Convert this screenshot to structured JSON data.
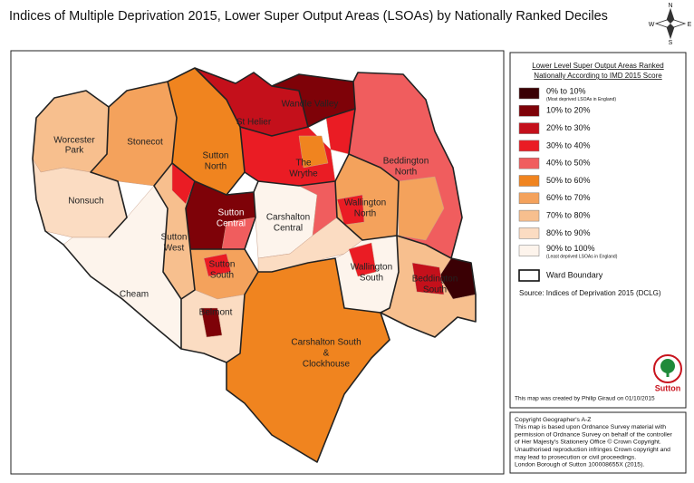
{
  "title": "Indices of Multiple Deprivation 2015, Lower Super Output Areas (LSOAs) by Nationally Ranked Deciles",
  "compass": {
    "n": "N",
    "e": "E",
    "s": "S",
    "w": "W"
  },
  "wards": [
    {
      "lines": [
        "Worcester",
        "Park"
      ]
    },
    {
      "lines": [
        "Stonecot"
      ]
    },
    {
      "lines": [
        "Nonsuch"
      ]
    },
    {
      "lines": [
        "Sutton",
        "North"
      ]
    },
    {
      "lines": [
        "St Helier"
      ]
    },
    {
      "lines": [
        "Wandle Valley"
      ]
    },
    {
      "lines": [
        "The",
        "Wrythe"
      ]
    },
    {
      "lines": [
        "Beddington",
        "North"
      ]
    },
    {
      "lines": [
        "Wallington",
        "North"
      ]
    },
    {
      "lines": [
        "Carshalton",
        "Central"
      ]
    },
    {
      "lines": [
        "Sutton",
        "Central"
      ]
    },
    {
      "lines": [
        "Sutton",
        "West"
      ]
    },
    {
      "lines": [
        "Sutton",
        "South"
      ]
    },
    {
      "lines": [
        "Cheam"
      ]
    },
    {
      "lines": [
        "Belmont"
      ]
    },
    {
      "lines": [
        "Wallington",
        "South"
      ]
    },
    {
      "lines": [
        "Beddington",
        "South"
      ]
    },
    {
      "lines": [
        "Carshalton South",
        "&",
        "Clockhouse"
      ]
    }
  ],
  "legend": {
    "title_lines": [
      "Lower Level Super Output Areas Ranked",
      "Nationally According to IMD 2015 Score"
    ],
    "items": [
      {
        "label": "0% to 10%",
        "note": "(Most deprived LSOAs in England)",
        "color": "#3a0004"
      },
      {
        "label": "10% to 20%",
        "color": "#7e0208"
      },
      {
        "label": "20% to 30%",
        "color": "#c4101b"
      },
      {
        "label": "30% to 40%",
        "color": "#ea1c24"
      },
      {
        "label": "40% to 50%",
        "color": "#f05d5e"
      },
      {
        "label": "50% to 60%",
        "color": "#f0841f"
      },
      {
        "label": "60% to 70%",
        "color": "#f4a25c"
      },
      {
        "label": "70% to 80%",
        "color": "#f7bf8e"
      },
      {
        "label": "80% to 90%",
        "color": "#fbdcc2"
      },
      {
        "label": "90% to 100%",
        "note": "(Least deprived LSOAs in England)",
        "color": "#fdf4ec"
      }
    ],
    "boundary": "Ward Boundary"
  },
  "source": "Source: Indices of Deprivation 2015 (DCLG)",
  "logo": "Sutton",
  "credit": "This map was created by Philip Giraud on 01/10/2015",
  "copyright": [
    "Copyright Geographer's A-Z",
    "This map is based upon Ordnance Survey material with",
    "permission of Ordnance Survey on behalf of the controller",
    "of Her Majesty's Stationery  Office © Crown Copyright.",
    "Unauthorised reproduction infringes Crown copyright and",
    "may lead to prosecution or civil proceedings.",
    "London Borough of Sutton 100008655X (2015)."
  ]
}
